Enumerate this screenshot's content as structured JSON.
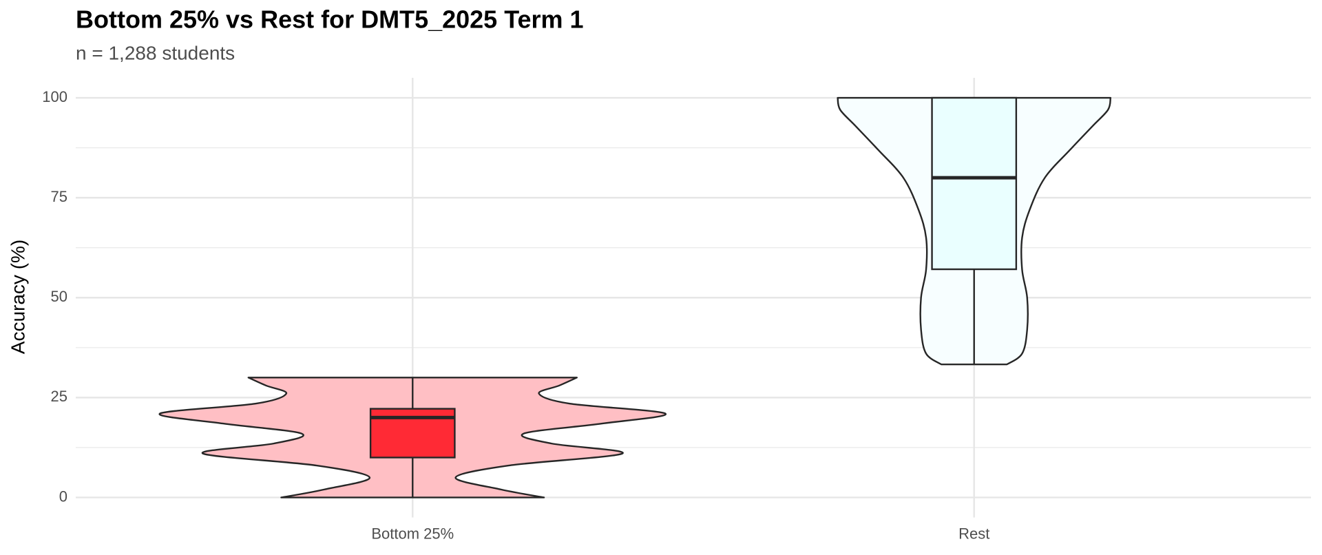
{
  "chart_data": {
    "type": "violin",
    "title": "Bottom 25% vs Rest for DMT5_2025 Term 1",
    "subtitle": "n = 1,288 students",
    "y_label": "Accuracy (%)",
    "categories": [
      "Bottom 25%",
      "Rest"
    ],
    "ylim": [
      -5,
      105
    ],
    "yticks": [
      0,
      25,
      50,
      75,
      100
    ],
    "minor_yticks": [
      12.5,
      37.5,
      62.5,
      87.5
    ],
    "grid": true,
    "series": [
      {
        "violin_color": "#ffbfc4",
        "box_color": "#ff2a35",
        "min": 0,
        "q1": 10,
        "median": 20,
        "q3": 22.2,
        "max": 30,
        "density": {
          "y": [
            0,
            2,
            5,
            8,
            11,
            13.5,
            16,
            18.5,
            21,
            23.5,
            26,
            28,
            30
          ],
          "width": [
            0.52,
            0.35,
            0.17,
            0.38,
            0.83,
            0.55,
            0.44,
            0.75,
            1.0,
            0.62,
            0.5,
            0.58,
            0.65
          ]
        }
      },
      {
        "violin_color": "#f7feff",
        "box_color": "#eaffff",
        "min": 33.3,
        "q1": 57.1,
        "median": 80,
        "q3": 100,
        "max": 100,
        "density": {
          "y": [
            33.3,
            36,
            42,
            50,
            57,
            65,
            72,
            80,
            87,
            93,
            97,
            100
          ],
          "width": [
            0.13,
            0.19,
            0.21,
            0.21,
            0.19,
            0.19,
            0.22,
            0.28,
            0.38,
            0.47,
            0.53,
            0.54
          ]
        }
      }
    ]
  }
}
